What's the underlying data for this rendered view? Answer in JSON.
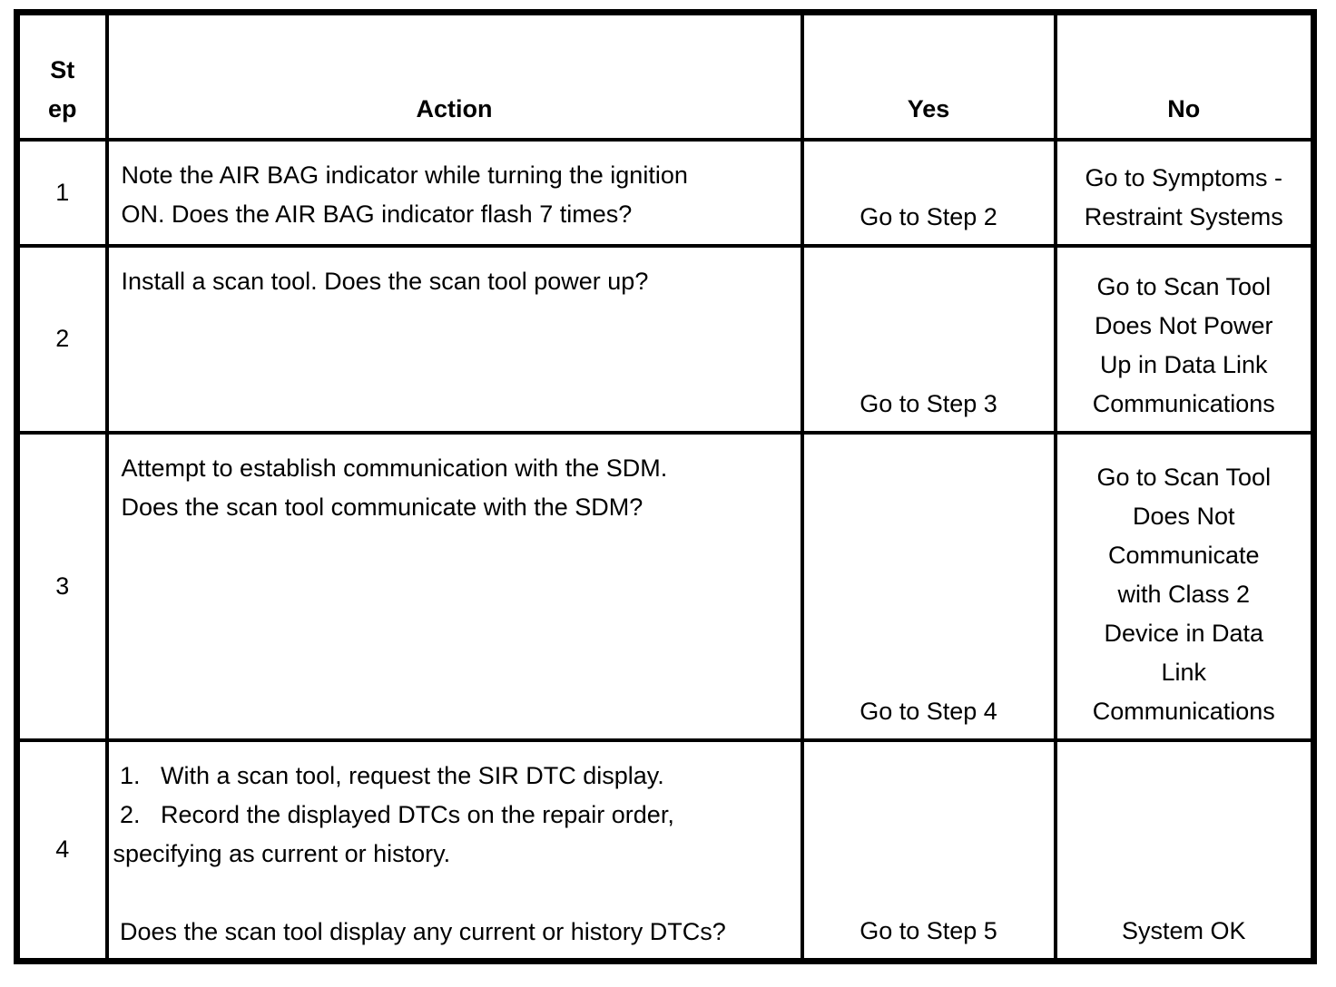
{
  "table": {
    "headers": {
      "step": "St\nep",
      "action": "Action",
      "yes": "Yes",
      "no": "No"
    },
    "rows": [
      {
        "step": "1",
        "action": "Note the AIR BAG indicator while turning the ignition\nON. Does the AIR BAG indicator flash 7 times?",
        "yes": "Go to Step 2",
        "no": "Go to Symptoms -\nRestraint Systems"
      },
      {
        "step": "2",
        "action": "Install a scan tool. Does the scan tool power up?",
        "yes": "Go to Step 3",
        "no": "Go to Scan Tool\nDoes Not Power\nUp in Data Link\nCommunications"
      },
      {
        "step": "3",
        "action": "Attempt to establish communication with the SDM.\nDoes the scan tool communicate with the SDM?",
        "yes": "Go to Step 4",
        "no": "Go to Scan Tool\nDoes Not\nCommunicate\nwith Class 2\nDevice in Data\nLink\nCommunications"
      },
      {
        "step": "4",
        "action": " 1.   With a scan tool, request the SIR DTC display.\n 2.   Record the displayed DTCs on the repair order,\nspecifying as current or history.\n\n Does the scan tool display any current or history DTCs?",
        "yes": "Go to Step 5",
        "no": "System OK"
      }
    ]
  }
}
